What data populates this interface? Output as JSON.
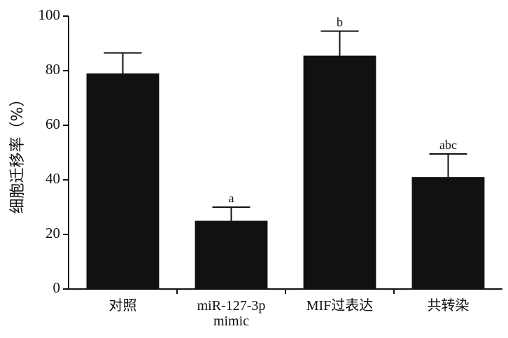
{
  "chart_data": {
    "type": "bar",
    "y_label": "细胞迁移率（%）",
    "categories": [
      "对照",
      "miR-127-3p mimic",
      "MIF过表达",
      "共转染"
    ],
    "values": [
      79,
      25,
      85.5,
      41
    ],
    "errors": [
      7.5,
      5,
      9,
      8.5
    ],
    "annotations": [
      null,
      "a",
      "b",
      "abc"
    ],
    "color": "#111111",
    "ylim": [
      0,
      100
    ],
    "yticks": [
      0,
      20,
      40,
      60,
      80,
      100
    ],
    "grid": false
  }
}
